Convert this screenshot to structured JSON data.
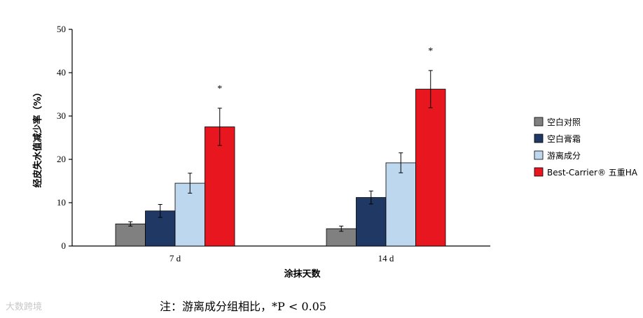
{
  "chart_data": {
    "type": "bar",
    "ylabel": "经皮失水值减少率（%）",
    "xlabel": "涂抹天数",
    "categories": [
      "7 d",
      "14 d"
    ],
    "ylim": [
      0,
      50
    ],
    "yticks": [
      0,
      10,
      20,
      30,
      40,
      50
    ],
    "grid": false,
    "legend_position": "right",
    "series": [
      {
        "name": "空白对照",
        "color": "#808080",
        "values": [
          5.1,
          4.0
        ],
        "errors": [
          0.5,
          0.6
        ]
      },
      {
        "name": "空白膏霜",
        "color": "#1f3864",
        "values": [
          8.1,
          11.2
        ],
        "errors": [
          1.5,
          1.5
        ]
      },
      {
        "name": "游离成分",
        "color": "#bdd7ee",
        "values": [
          14.5,
          19.2
        ],
        "errors": [
          2.3,
          2.3
        ]
      },
      {
        "name": "Best-Carrier® 五重HA",
        "color": "#e8171f",
        "values": [
          27.5,
          36.2
        ],
        "errors": [
          4.3,
          4.3
        ]
      }
    ],
    "significance_marks": [
      {
        "category": "7 d",
        "series": "Best-Carrier® 五重HA",
        "label": "*"
      },
      {
        "category": "14 d",
        "series": "Best-Carrier® 五重HA",
        "label": "*"
      }
    ],
    "footnote": "注：游离成分组相比，*P < 0.05"
  },
  "watermark": "大数跨境"
}
